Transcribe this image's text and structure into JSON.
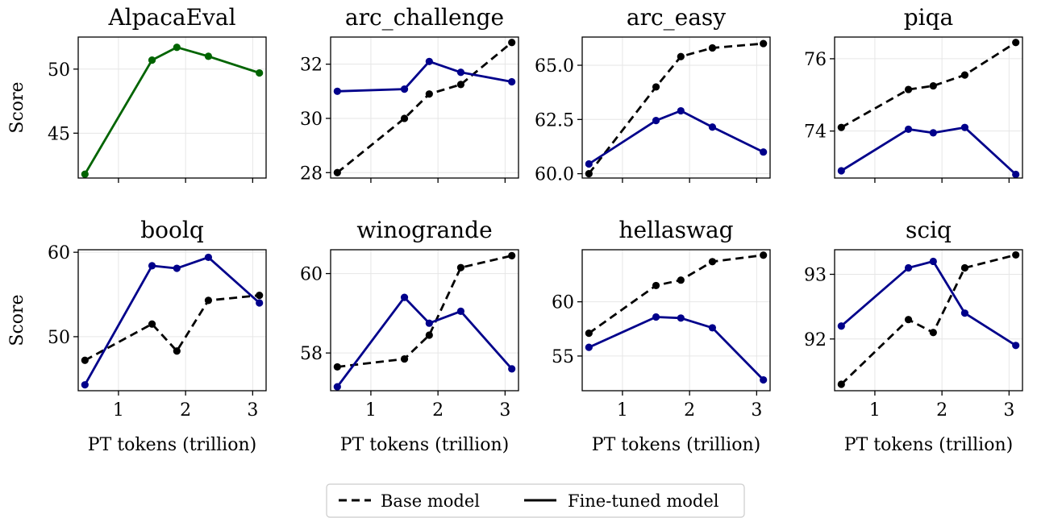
{
  "chart_data": {
    "type": "line",
    "grid": true,
    "x_label": "PT tokens (trillion)",
    "y_label": "Score",
    "x_ticks": [
      1,
      2,
      3
    ],
    "x_range": [
      0.4,
      3.2
    ],
    "legend": {
      "placement": "bottom-center",
      "entries": [
        {
          "label": "Base model",
          "style": "dashed"
        },
        {
          "label": "Fine-tuned model",
          "style": "solid"
        }
      ]
    },
    "colors": {
      "base": "#000000",
      "finetuned": "#00008b",
      "alpaca": "#006400"
    },
    "panels": [
      {
        "title": "AlpacaEval",
        "ylim": [
          41.5,
          52.5
        ],
        "yticks": [
          45,
          50
        ],
        "series": [
          {
            "role": "finetuned",
            "color": "#006400",
            "x": [
              0.5,
              1.5,
              1.87,
              2.34,
              3.1
            ],
            "y": [
              41.8,
              50.7,
              51.7,
              51.0,
              49.7
            ]
          }
        ]
      },
      {
        "title": "arc_challenge",
        "ylim": [
          27.8,
          33.0
        ],
        "yticks": [
          28,
          30,
          32
        ],
        "series": [
          {
            "role": "base",
            "x": [
              0.5,
              1.5,
              1.87,
              2.34,
              3.1
            ],
            "y": [
              28.0,
              30.0,
              30.9,
              31.25,
              32.8
            ]
          },
          {
            "role": "finetuned",
            "x": [
              0.5,
              1.5,
              1.87,
              2.34,
              3.1
            ],
            "y": [
              31.0,
              31.08,
              32.1,
              31.7,
              31.35
            ]
          }
        ]
      },
      {
        "title": "arc_easy",
        "ylim": [
          59.8,
          66.3
        ],
        "yticks": [
          60.0,
          62.5,
          65.0
        ],
        "ytick_labels": [
          "60.0",
          "62.5",
          "65.0"
        ],
        "series": [
          {
            "role": "base",
            "x": [
              0.5,
              1.5,
              1.87,
              2.34,
              3.1
            ],
            "y": [
              60.0,
              64.0,
              65.4,
              65.8,
              66.0
            ]
          },
          {
            "role": "finetuned",
            "x": [
              0.5,
              1.5,
              1.87,
              2.34,
              3.1
            ],
            "y": [
              60.45,
              62.45,
              62.9,
              62.15,
              61.0
            ]
          }
        ]
      },
      {
        "title": "piqa",
        "ylim": [
          72.7,
          76.6
        ],
        "yticks": [
          74,
          76
        ],
        "series": [
          {
            "role": "base",
            "x": [
              0.5,
              1.5,
              1.87,
              2.34,
              3.1
            ],
            "y": [
              74.1,
              75.15,
              75.25,
              75.55,
              76.45
            ]
          },
          {
            "role": "finetuned",
            "x": [
              0.5,
              1.5,
              1.87,
              2.34,
              3.1
            ],
            "y": [
              72.9,
              74.05,
              73.95,
              74.1,
              72.8
            ]
          }
        ]
      },
      {
        "title": "boolq",
        "ylim": [
          43.6,
          60.3
        ],
        "yticks": [
          50,
          60
        ],
        "series": [
          {
            "role": "base",
            "x": [
              0.5,
              1.5,
              1.87,
              2.34,
              3.1
            ],
            "y": [
              47.2,
              51.5,
              48.3,
              54.3,
              54.9
            ]
          },
          {
            "role": "finetuned",
            "x": [
              0.5,
              1.5,
              1.87,
              2.34,
              3.1
            ],
            "y": [
              44.3,
              58.4,
              58.1,
              59.4,
              54.0
            ]
          }
        ]
      },
      {
        "title": "winogrande",
        "ylim": [
          57.05,
          60.6
        ],
        "yticks": [
          58,
          60
        ],
        "series": [
          {
            "role": "base",
            "x": [
              0.5,
              1.5,
              1.87,
              2.34,
              3.1
            ],
            "y": [
              57.65,
              57.85,
              58.45,
              60.15,
              60.45
            ]
          },
          {
            "role": "finetuned",
            "x": [
              0.5,
              1.5,
              1.87,
              2.34,
              3.1
            ],
            "y": [
              57.15,
              59.4,
              58.75,
              59.05,
              57.6
            ]
          }
        ]
      },
      {
        "title": "hellaswag",
        "ylim": [
          51.8,
          64.8
        ],
        "yticks": [
          55,
          60
        ],
        "series": [
          {
            "role": "base",
            "x": [
              0.5,
              1.5,
              1.87,
              2.34,
              3.1
            ],
            "y": [
              57.1,
              61.5,
              62.0,
              63.7,
              64.3
            ]
          },
          {
            "role": "finetuned",
            "x": [
              0.5,
              1.5,
              1.87,
              2.34,
              3.1
            ],
            "y": [
              55.8,
              58.6,
              58.5,
              57.6,
              52.8
            ]
          }
        ]
      },
      {
        "title": "sciq",
        "ylim": [
          91.2,
          93.38
        ],
        "yticks": [
          92,
          93
        ],
        "series": [
          {
            "role": "base",
            "x": [
              0.5,
              1.5,
              1.87,
              2.34,
              3.1
            ],
            "y": [
              91.3,
              92.3,
              92.1,
              93.1,
              93.3
            ]
          },
          {
            "role": "finetuned",
            "x": [
              0.5,
              1.5,
              1.87,
              2.34,
              3.1
            ],
            "y": [
              92.2,
              93.1,
              93.2,
              92.4,
              91.9
            ]
          }
        ]
      }
    ]
  }
}
